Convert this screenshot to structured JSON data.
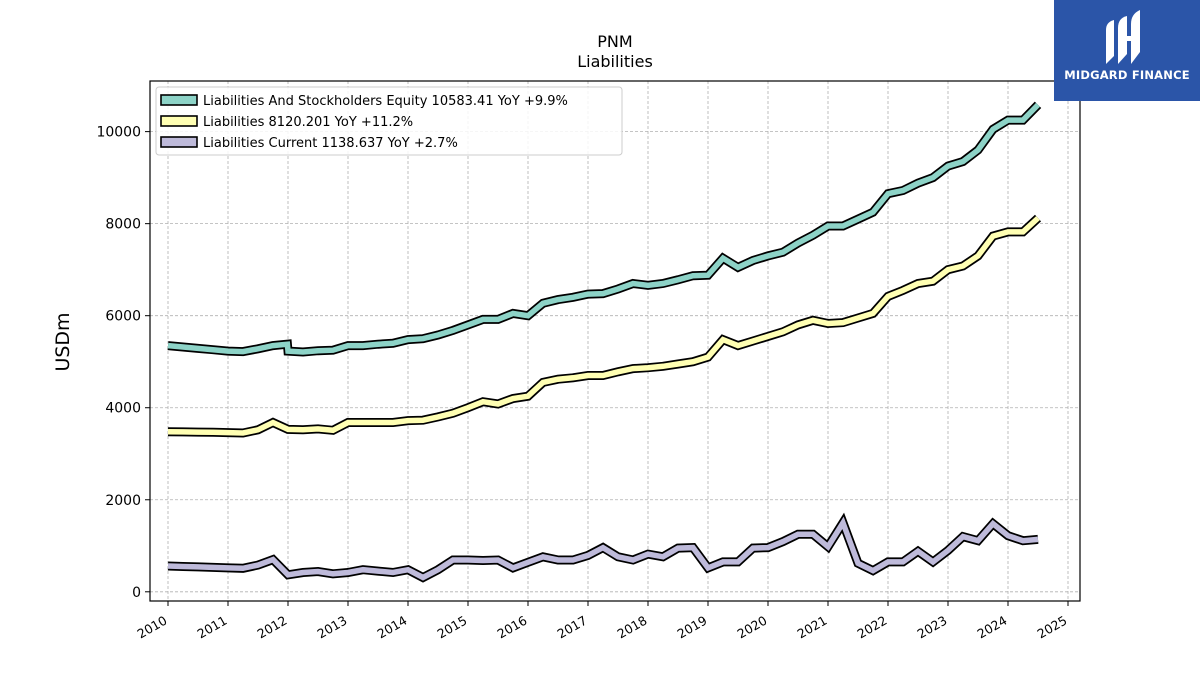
{
  "logo": {
    "text": "MIDGARD FINANCE",
    "icon": "midgard-logo-icon",
    "color": "#2b55a8"
  },
  "chart_data": {
    "type": "line",
    "title": "PNM",
    "subtitle": "Liabilities",
    "xlabel": "",
    "ylabel": "USDm",
    "xlim": [
      2009.7,
      2025.2
    ],
    "ylim": [
      -200,
      11100
    ],
    "xticks": [
      2010,
      2011,
      2012,
      2013,
      2014,
      2015,
      2016,
      2017,
      2018,
      2019,
      2020,
      2021,
      2022,
      2023,
      2024,
      2025
    ],
    "yticks": [
      0,
      2000,
      4000,
      6000,
      8000,
      10000
    ],
    "grid": true,
    "legend_position": "top-left",
    "series": [
      {
        "name": "Liabilities And Stockholders Equity",
        "legend_label": "Liabilities And Stockholders Equity  10583.41 YoY +9.9%",
        "color": "#8dd3c7",
        "points": [
          [
            2010.0,
            5350
          ],
          [
            2010.25,
            5320
          ],
          [
            2010.5,
            5290
          ],
          [
            2010.75,
            5260
          ],
          [
            2011.0,
            5230
          ],
          [
            2011.25,
            5220
          ],
          [
            2011.5,
            5280
          ],
          [
            2011.75,
            5350
          ],
          [
            2011.99,
            5380
          ],
          [
            2012.0,
            5230
          ],
          [
            2012.25,
            5210
          ],
          [
            2012.5,
            5240
          ],
          [
            2012.75,
            5250
          ],
          [
            2013.0,
            5350
          ],
          [
            2013.25,
            5350
          ],
          [
            2013.5,
            5380
          ],
          [
            2013.75,
            5400
          ],
          [
            2014.0,
            5480
          ],
          [
            2014.25,
            5500
          ],
          [
            2014.5,
            5580
          ],
          [
            2014.75,
            5680
          ],
          [
            2015.0,
            5800
          ],
          [
            2015.25,
            5920
          ],
          [
            2015.5,
            5920
          ],
          [
            2015.75,
            6050
          ],
          [
            2016.0,
            6000
          ],
          [
            2016.25,
            6270
          ],
          [
            2016.5,
            6350
          ],
          [
            2016.75,
            6400
          ],
          [
            2017.0,
            6470
          ],
          [
            2017.25,
            6480
          ],
          [
            2017.5,
            6580
          ],
          [
            2017.75,
            6700
          ],
          [
            2018.0,
            6660
          ],
          [
            2018.25,
            6700
          ],
          [
            2018.5,
            6780
          ],
          [
            2018.75,
            6870
          ],
          [
            2019.0,
            6880
          ],
          [
            2019.25,
            7250
          ],
          [
            2019.5,
            7050
          ],
          [
            2019.75,
            7200
          ],
          [
            2020.0,
            7300
          ],
          [
            2020.25,
            7380
          ],
          [
            2020.5,
            7580
          ],
          [
            2020.75,
            7750
          ],
          [
            2021.0,
            7950
          ],
          [
            2021.25,
            7950
          ],
          [
            2021.5,
            8100
          ],
          [
            2021.75,
            8250
          ],
          [
            2022.0,
            8650
          ],
          [
            2022.25,
            8720
          ],
          [
            2022.5,
            8880
          ],
          [
            2022.75,
            9000
          ],
          [
            2023.0,
            9250
          ],
          [
            2023.25,
            9350
          ],
          [
            2023.5,
            9600
          ],
          [
            2023.75,
            10050
          ],
          [
            2024.0,
            10250
          ],
          [
            2024.25,
            10250
          ],
          [
            2024.5,
            10583
          ]
        ]
      },
      {
        "name": "Liabilities",
        "legend_label": "Liabilities  8120.201 YoY +11.2%",
        "color": "#ffffb3",
        "points": [
          [
            2010.0,
            3480
          ],
          [
            2010.25,
            3475
          ],
          [
            2010.5,
            3470
          ],
          [
            2010.75,
            3465
          ],
          [
            2011.0,
            3460
          ],
          [
            2011.25,
            3450
          ],
          [
            2011.5,
            3520
          ],
          [
            2011.75,
            3680
          ],
          [
            2012.0,
            3530
          ],
          [
            2012.25,
            3520
          ],
          [
            2012.5,
            3540
          ],
          [
            2012.75,
            3510
          ],
          [
            2013.0,
            3680
          ],
          [
            2013.25,
            3680
          ],
          [
            2013.5,
            3680
          ],
          [
            2013.75,
            3680
          ],
          [
            2014.0,
            3720
          ],
          [
            2014.25,
            3730
          ],
          [
            2014.5,
            3800
          ],
          [
            2014.75,
            3880
          ],
          [
            2015.0,
            4000
          ],
          [
            2015.25,
            4130
          ],
          [
            2015.5,
            4080
          ],
          [
            2015.75,
            4200
          ],
          [
            2016.0,
            4250
          ],
          [
            2016.25,
            4550
          ],
          [
            2016.5,
            4620
          ],
          [
            2016.75,
            4650
          ],
          [
            2017.0,
            4700
          ],
          [
            2017.25,
            4700
          ],
          [
            2017.5,
            4780
          ],
          [
            2017.75,
            4850
          ],
          [
            2018.0,
            4870
          ],
          [
            2018.25,
            4900
          ],
          [
            2018.5,
            4950
          ],
          [
            2018.75,
            5000
          ],
          [
            2019.0,
            5100
          ],
          [
            2019.25,
            5480
          ],
          [
            2019.5,
            5350
          ],
          [
            2019.75,
            5450
          ],
          [
            2020.0,
            5550
          ],
          [
            2020.25,
            5650
          ],
          [
            2020.5,
            5800
          ],
          [
            2020.75,
            5900
          ],
          [
            2021.0,
            5830
          ],
          [
            2021.25,
            5850
          ],
          [
            2021.5,
            5950
          ],
          [
            2021.75,
            6050
          ],
          [
            2022.0,
            6420
          ],
          [
            2022.25,
            6550
          ],
          [
            2022.5,
            6700
          ],
          [
            2022.75,
            6750
          ],
          [
            2023.0,
            7000
          ],
          [
            2023.25,
            7080
          ],
          [
            2023.5,
            7300
          ],
          [
            2023.75,
            7730
          ],
          [
            2024.0,
            7820
          ],
          [
            2024.25,
            7820
          ],
          [
            2024.5,
            8120
          ]
        ]
      },
      {
        "name": "Liabilities Current",
        "legend_label": "Liabilities Current  1138.637 YoY +2.7%",
        "color": "#bebada",
        "points": [
          [
            2010.0,
            560
          ],
          [
            2010.25,
            550
          ],
          [
            2010.5,
            540
          ],
          [
            2010.75,
            530
          ],
          [
            2011.0,
            520
          ],
          [
            2011.25,
            510
          ],
          [
            2011.5,
            580
          ],
          [
            2011.75,
            700
          ],
          [
            2012.0,
            370
          ],
          [
            2012.25,
            420
          ],
          [
            2012.5,
            440
          ],
          [
            2012.75,
            390
          ],
          [
            2013.0,
            420
          ],
          [
            2013.25,
            480
          ],
          [
            2013.5,
            450
          ],
          [
            2013.75,
            420
          ],
          [
            2014.0,
            480
          ],
          [
            2014.25,
            310
          ],
          [
            2014.5,
            480
          ],
          [
            2014.75,
            690
          ],
          [
            2015.0,
            690
          ],
          [
            2015.25,
            680
          ],
          [
            2015.5,
            690
          ],
          [
            2015.75,
            520
          ],
          [
            2016.0,
            640
          ],
          [
            2016.25,
            760
          ],
          [
            2016.5,
            690
          ],
          [
            2016.75,
            690
          ],
          [
            2017.0,
            790
          ],
          [
            2017.25,
            960
          ],
          [
            2017.5,
            760
          ],
          [
            2017.75,
            690
          ],
          [
            2018.0,
            820
          ],
          [
            2018.25,
            760
          ],
          [
            2018.5,
            950
          ],
          [
            2018.75,
            960
          ],
          [
            2019.0,
            520
          ],
          [
            2019.25,
            650
          ],
          [
            2019.5,
            650
          ],
          [
            2019.75,
            950
          ],
          [
            2020.0,
            960
          ],
          [
            2020.25,
            1090
          ],
          [
            2020.5,
            1250
          ],
          [
            2020.75,
            1250
          ],
          [
            2021.0,
            980
          ],
          [
            2021.25,
            1500
          ],
          [
            2021.5,
            620
          ],
          [
            2021.75,
            460
          ],
          [
            2022.0,
            650
          ],
          [
            2022.25,
            650
          ],
          [
            2022.5,
            880
          ],
          [
            2022.75,
            650
          ],
          [
            2023.0,
            900
          ],
          [
            2023.25,
            1200
          ],
          [
            2023.5,
            1110
          ],
          [
            2023.75,
            1480
          ],
          [
            2024.0,
            1220
          ],
          [
            2024.25,
            1110
          ],
          [
            2024.5,
            1139
          ]
        ]
      }
    ]
  }
}
